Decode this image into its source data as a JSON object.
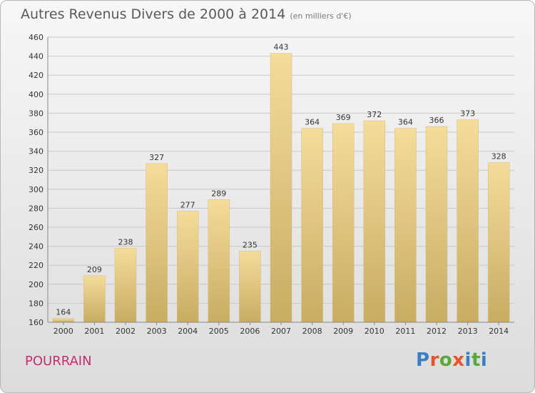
{
  "title": "Autres Revenus Divers de 2000 à 2014",
  "subtitle": "(en milliers d'€)",
  "town": "POURRAIN",
  "logo": {
    "text": "Proxiti",
    "letter_colors": [
      "#3a7fc4",
      "#e8542a",
      "#59a83a",
      "#e8542a",
      "#3a7fc4",
      "#59a83a",
      "#3a7fc4"
    ]
  },
  "colors": {
    "bar_light": "#f4dc9a",
    "bar_dark": "#c8ac62",
    "grid": "#c8c8c8",
    "axis_text": "#333333"
  },
  "chart_data": {
    "type": "bar",
    "categories": [
      "2000",
      "2001",
      "2002",
      "2003",
      "2004",
      "2005",
      "2006",
      "2007",
      "2008",
      "2009",
      "2010",
      "2011",
      "2012",
      "2013",
      "2014"
    ],
    "values": [
      164,
      209,
      238,
      327,
      277,
      289,
      235,
      443,
      364,
      369,
      372,
      364,
      366,
      373,
      328
    ],
    "ylim": [
      160,
      460
    ],
    "yticks": [
      160,
      180,
      200,
      220,
      240,
      260,
      280,
      300,
      320,
      340,
      360,
      380,
      400,
      420,
      440,
      460
    ],
    "grid": true
  }
}
